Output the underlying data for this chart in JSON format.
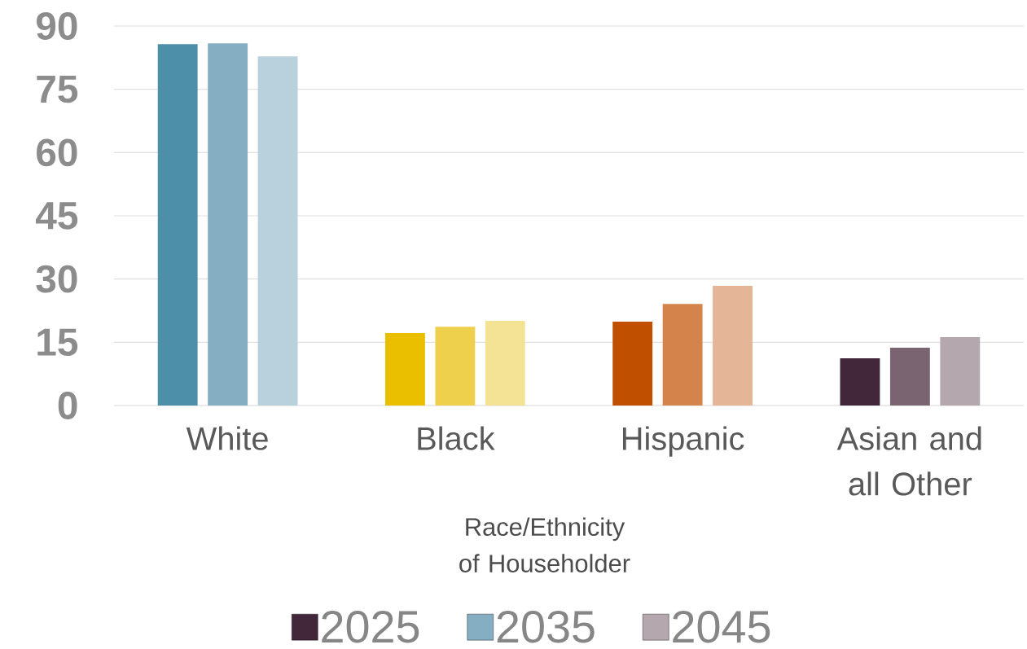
{
  "chart_data": {
    "type": "bar",
    "xlabel": "Race/Ethnicity of Householder",
    "categories": [
      "White",
      "Black",
      "Hispanic",
      "Asian and all Other"
    ],
    "series": [
      {
        "name": "2025",
        "color": "#42263a",
        "colors": [
          "#4d8ea9",
          "#e9bf00",
          "#c04f00",
          "#42263a"
        ],
        "values": [
          85.7,
          17.2,
          19.9,
          11.2
        ]
      },
      {
        "name": "2035",
        "color": "#85aec2",
        "colors": [
          "#85aec2",
          "#efd04c",
          "#d4834a",
          "#7a6472"
        ],
        "values": [
          85.9,
          18.7,
          24.1,
          13.7
        ]
      },
      {
        "name": "2045",
        "color": "#b4a7ae",
        "colors": [
          "#b8d1dc",
          "#f4e394",
          "#e4b596",
          "#b4a7ae"
        ],
        "values": [
          82.8,
          20.1,
          28.4,
          16.2
        ]
      }
    ],
    "ylim": [
      0,
      90
    ],
    "yticks": [
      0,
      15,
      30,
      45,
      60,
      75,
      90
    ],
    "grid": "y",
    "legend": "bottom"
  }
}
